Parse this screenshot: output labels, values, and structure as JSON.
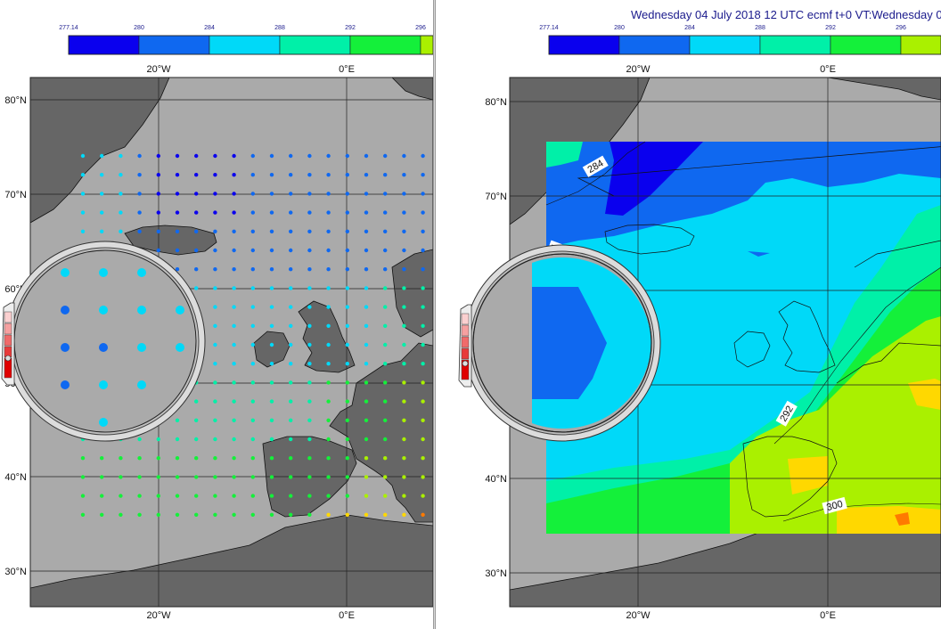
{
  "title": "Wednesday 04 July 2018 12 UTC ecmf t+0 VT:Wednesday 0",
  "colorbar": {
    "ticks": [
      "277.14",
      "280",
      "284",
      "288",
      "292",
      "296"
    ],
    "colors": [
      "#0a00ee",
      "#0f68f0",
      "#00d9f8",
      "#00f0a8",
      "#14f03a",
      "#aaf000",
      "#ffd800",
      "#ff7a00"
    ]
  },
  "map": {
    "land_color": "#666666",
    "sea_color": "#aaaaaa",
    "lon_labels": [
      "20°W",
      "0°E"
    ],
    "lat_labels": [
      "80°N",
      "70°N",
      "60°N",
      "50°N",
      "40°N",
      "30°N"
    ]
  },
  "contour_labels": [
    "284",
    "292",
    "300",
    "4"
  ],
  "magnifier_points": [
    {
      "row": 0,
      "col": 0,
      "color": "#00d9f8"
    },
    {
      "row": 0,
      "col": 1,
      "color": "#00d9f8"
    },
    {
      "row": 0,
      "col": 2,
      "color": "#00d9f8"
    },
    {
      "row": 1,
      "col": 0,
      "color": "#0f68f0"
    },
    {
      "row": 1,
      "col": 1,
      "color": "#00d9f8"
    },
    {
      "row": 1,
      "col": 2,
      "color": "#00d9f8"
    },
    {
      "row": 1,
      "col": 3,
      "color": "#00d9f8"
    },
    {
      "row": 2,
      "col": 0,
      "color": "#0f68f0"
    },
    {
      "row": 2,
      "col": 1,
      "color": "#0f68f0"
    },
    {
      "row": 2,
      "col": 2,
      "color": "#00d9f8"
    },
    {
      "row": 2,
      "col": 3,
      "color": "#00d9f8"
    },
    {
      "row": 3,
      "col": 0,
      "color": "#0f68f0"
    },
    {
      "row": 3,
      "col": 1,
      "color": "#00d9f8"
    },
    {
      "row": 3,
      "col": 2,
      "color": "#00d9f8"
    },
    {
      "row": 4,
      "col": 1,
      "color": "#00d9f8"
    }
  ]
}
